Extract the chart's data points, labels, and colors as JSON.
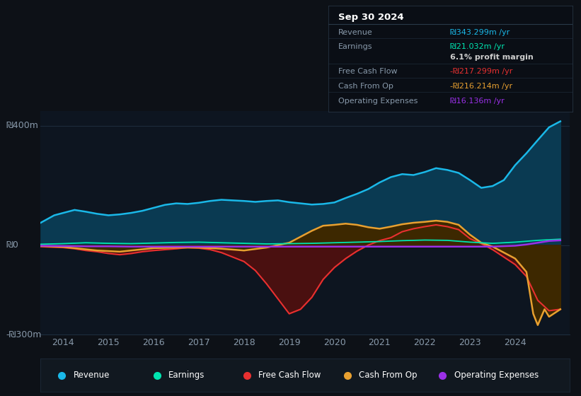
{
  "bg_color": "#0d1117",
  "plot_bg_color": "#0d1520",
  "grid_color": "#1a2535",
  "title": "Sep 30 2024",
  "ylim": [
    -300,
    450
  ],
  "xlim": [
    2013.5,
    2025.2
  ],
  "ytick_labels": [
    "₪400m",
    "₪0",
    "-₪300m"
  ],
  "ytick_positions": [
    400,
    0,
    -300
  ],
  "xticks": [
    2014,
    2015,
    2016,
    2017,
    2018,
    2019,
    2020,
    2021,
    2022,
    2023,
    2024
  ],
  "revenue": {
    "color": "#1ab8e8",
    "fill_color": "#0a3a52",
    "data_x": [
      2013.5,
      2013.8,
      2014.0,
      2014.25,
      2014.5,
      2014.75,
      2015.0,
      2015.25,
      2015.5,
      2015.75,
      2016.0,
      2016.25,
      2016.5,
      2016.75,
      2017.0,
      2017.25,
      2017.5,
      2017.75,
      2018.0,
      2018.25,
      2018.5,
      2018.75,
      2019.0,
      2019.25,
      2019.5,
      2019.75,
      2020.0,
      2020.25,
      2020.5,
      2020.75,
      2021.0,
      2021.25,
      2021.5,
      2021.75,
      2022.0,
      2022.25,
      2022.5,
      2022.75,
      2023.0,
      2023.25,
      2023.5,
      2023.75,
      2024.0,
      2024.25,
      2024.5,
      2024.75,
      2025.0
    ],
    "data_y": [
      75,
      100,
      108,
      118,
      112,
      105,
      100,
      103,
      108,
      115,
      125,
      135,
      140,
      138,
      142,
      148,
      152,
      150,
      148,
      145,
      148,
      150,
      144,
      140,
      136,
      138,
      143,
      158,
      172,
      188,
      210,
      228,
      238,
      235,
      245,
      258,
      252,
      242,
      218,
      192,
      198,
      218,
      268,
      308,
      352,
      395,
      415
    ]
  },
  "earnings": {
    "color": "#00e5b0",
    "data_x": [
      2013.5,
      2014.0,
      2014.5,
      2015.0,
      2015.5,
      2016.0,
      2016.5,
      2017.0,
      2017.5,
      2018.0,
      2018.5,
      2019.0,
      2019.5,
      2020.0,
      2020.5,
      2021.0,
      2021.5,
      2022.0,
      2022.5,
      2023.0,
      2023.5,
      2024.0,
      2024.5,
      2024.75,
      2025.0
    ],
    "data_y": [
      3,
      5,
      8,
      6,
      5,
      7,
      9,
      10,
      8,
      6,
      4,
      5,
      6,
      8,
      10,
      12,
      15,
      17,
      16,
      10,
      6,
      10,
      16,
      18,
      20
    ]
  },
  "free_cash_flow": {
    "color": "#e83030",
    "fill_color": "#4a1010",
    "data_x": [
      2013.5,
      2014.0,
      2014.25,
      2014.5,
      2014.75,
      2015.0,
      2015.25,
      2015.5,
      2015.75,
      2016.0,
      2016.25,
      2016.5,
      2016.75,
      2017.0,
      2017.25,
      2017.5,
      2017.75,
      2018.0,
      2018.25,
      2018.5,
      2018.75,
      2019.0,
      2019.25,
      2019.5,
      2019.75,
      2020.0,
      2020.25,
      2020.5,
      2020.75,
      2021.0,
      2021.25,
      2021.5,
      2021.75,
      2022.0,
      2022.25,
      2022.5,
      2022.75,
      2023.0,
      2023.25,
      2023.5,
      2023.75,
      2024.0,
      2024.25,
      2024.5,
      2024.75,
      2025.0
    ],
    "data_y": [
      -5,
      -8,
      -12,
      -18,
      -22,
      -28,
      -32,
      -28,
      -22,
      -18,
      -15,
      -12,
      -8,
      -10,
      -15,
      -25,
      -40,
      -55,
      -85,
      -130,
      -180,
      -230,
      -215,
      -175,
      -115,
      -75,
      -45,
      -20,
      0,
      15,
      25,
      45,
      55,
      62,
      68,
      62,
      52,
      22,
      5,
      -15,
      -40,
      -65,
      -105,
      -185,
      -220,
      -215
    ]
  },
  "cash_from_op": {
    "color": "#e8a030",
    "fill_color": "#3d2800",
    "data_x": [
      2013.5,
      2014.0,
      2014.25,
      2014.5,
      2014.75,
      2015.0,
      2015.25,
      2015.5,
      2015.75,
      2016.0,
      2016.5,
      2017.0,
      2017.5,
      2018.0,
      2018.5,
      2019.0,
      2019.25,
      2019.5,
      2019.75,
      2020.0,
      2020.25,
      2020.5,
      2020.75,
      2021.0,
      2021.25,
      2021.5,
      2021.75,
      2022.0,
      2022.25,
      2022.5,
      2022.75,
      2023.0,
      2023.25,
      2023.5,
      2023.75,
      2024.0,
      2024.25,
      2024.4,
      2024.5,
      2024.65,
      2024.75,
      2025.0
    ],
    "data_y": [
      -3,
      -6,
      -10,
      -14,
      -18,
      -20,
      -22,
      -18,
      -14,
      -10,
      -8,
      -8,
      -12,
      -18,
      -8,
      8,
      28,
      48,
      65,
      68,
      72,
      68,
      60,
      55,
      62,
      70,
      75,
      78,
      82,
      78,
      68,
      35,
      8,
      -5,
      -25,
      -45,
      -90,
      -230,
      -268,
      -215,
      -240,
      -215
    ]
  },
  "operating_expenses": {
    "color": "#9b30e8",
    "data_x": [
      2013.5,
      2014.0,
      2014.5,
      2015.0,
      2015.5,
      2016.0,
      2016.5,
      2017.0,
      2017.5,
      2018.0,
      2018.5,
      2019.0,
      2019.5,
      2020.0,
      2020.5,
      2021.0,
      2021.5,
      2022.0,
      2022.5,
      2023.0,
      2023.5,
      2024.0,
      2024.25,
      2024.5,
      2024.75,
      2025.0
    ],
    "data_y": [
      -2,
      -3,
      -4,
      -4,
      -5,
      -5,
      -5,
      -5,
      -5,
      -5,
      -5,
      -5,
      -5,
      -5,
      -5,
      -5,
      -5,
      -5,
      -5,
      -5,
      -5,
      -2,
      2,
      8,
      14,
      16
    ]
  },
  "info_box": {
    "title": "Sep 30 2024",
    "rows": [
      {
        "label": "Revenue",
        "value": "₪343.299m /yr",
        "value_color": "#1ab8e8",
        "bold_value": false
      },
      {
        "label": "Earnings",
        "value": "₪21.032m /yr",
        "value_color": "#00e5b0",
        "bold_value": false
      },
      {
        "label": "",
        "value": "6.1% profit margin",
        "value_color": "#cccccc",
        "bold_value": true
      },
      {
        "label": "Free Cash Flow",
        "value": "-₪217.299m /yr",
        "value_color": "#e83030",
        "bold_value": false
      },
      {
        "label": "Cash From Op",
        "value": "-₪216.214m /yr",
        "value_color": "#e8a030",
        "bold_value": false
      },
      {
        "label": "Operating Expenses",
        "value": "₪16.136m /yr",
        "value_color": "#9b30e8",
        "bold_value": false
      }
    ]
  },
  "legend": [
    {
      "label": "Revenue",
      "color": "#1ab8e8"
    },
    {
      "label": "Earnings",
      "color": "#00e5b0"
    },
    {
      "label": "Free Cash Flow",
      "color": "#e83030"
    },
    {
      "label": "Cash From Op",
      "color": "#e8a030"
    },
    {
      "label": "Operating Expenses",
      "color": "#9b30e8"
    }
  ]
}
